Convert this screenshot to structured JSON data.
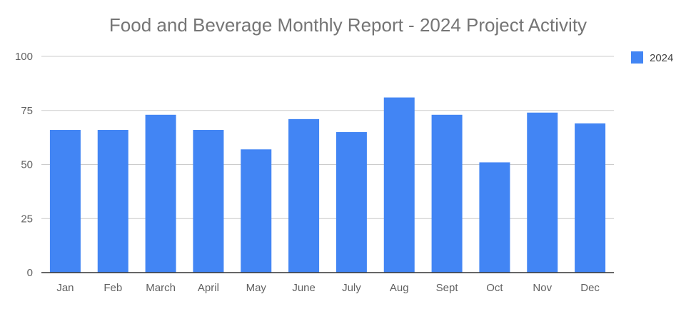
{
  "chart_data": {
    "type": "bar",
    "title": "Food and Beverage Monthly Report - 2024 Project Activity",
    "categories": [
      "Jan",
      "Feb",
      "March",
      "April",
      "May",
      "June",
      "July",
      "Aug",
      "Sept",
      "Oct",
      "Nov",
      "Dec"
    ],
    "series": [
      {
        "name": "2024",
        "values": [
          66,
          66,
          73,
          66,
          57,
          71,
          65,
          81,
          73,
          51,
          74,
          69
        ]
      }
    ],
    "yticks": [
      "0",
      "25",
      "50",
      "75",
      "100"
    ],
    "ylim": [
      0,
      100
    ],
    "xlabel": "",
    "ylabel": "",
    "grid": true,
    "legend_position": "right",
    "colors": {
      "bar": "#4285f4",
      "grid": "#cccccc",
      "axis": "#333333"
    }
  }
}
